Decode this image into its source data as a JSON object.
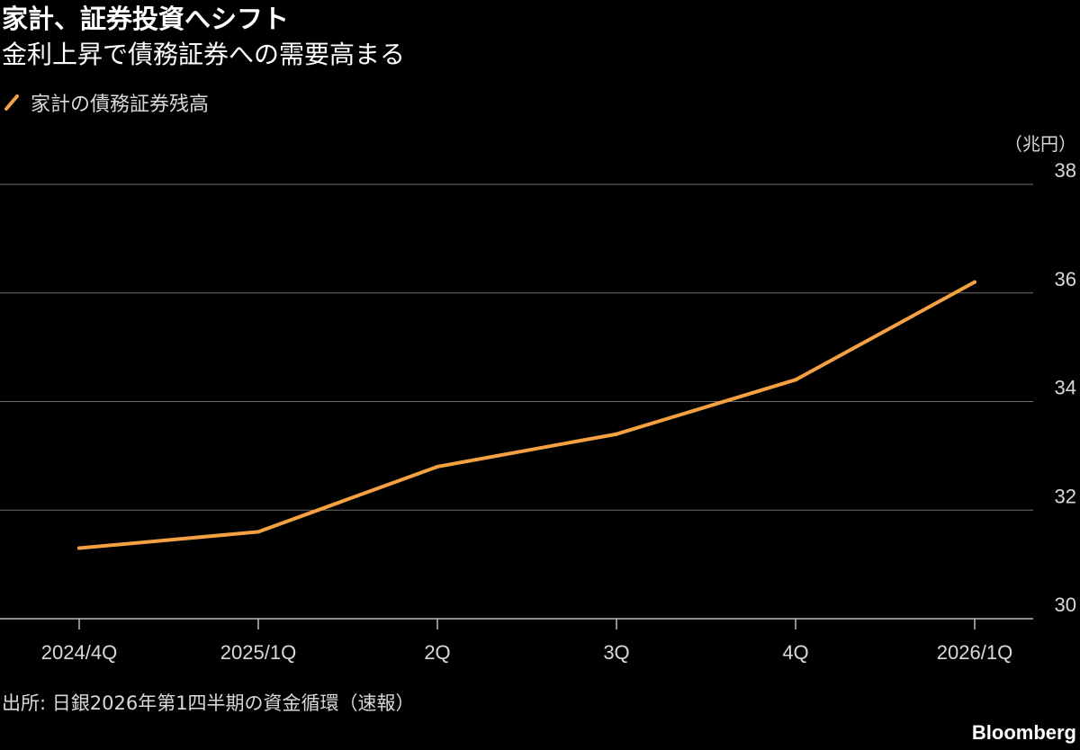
{
  "header": {
    "title": "家計、証券投資へシフト",
    "subtitle": "金利上昇で債務証券への需要高まる"
  },
  "footer": {
    "source": "出所: 日銀2026年第1四半期の資金循環（速報）",
    "brand": "Bloomberg"
  },
  "chart_data": {
    "type": "line",
    "title": "家計、証券投資へシフト",
    "subtitle": "金利上昇で債務証券への需要高まる",
    "unit": "（兆円）",
    "x": [
      "2024/4Q",
      "2025/1Q",
      "2Q",
      "3Q",
      "4Q",
      "2026/1Q"
    ],
    "series": [
      {
        "name": "家計の債務証券残高",
        "color": "#f5a142",
        "values": [
          31.3,
          31.6,
          32.8,
          33.4,
          34.4,
          36.2
        ]
      }
    ],
    "ylim": [
      30,
      38
    ],
    "yticks": [
      30,
      32,
      34,
      36,
      38
    ],
    "grid": true,
    "legend_position": "top-left",
    "y_axis_side": "right"
  }
}
